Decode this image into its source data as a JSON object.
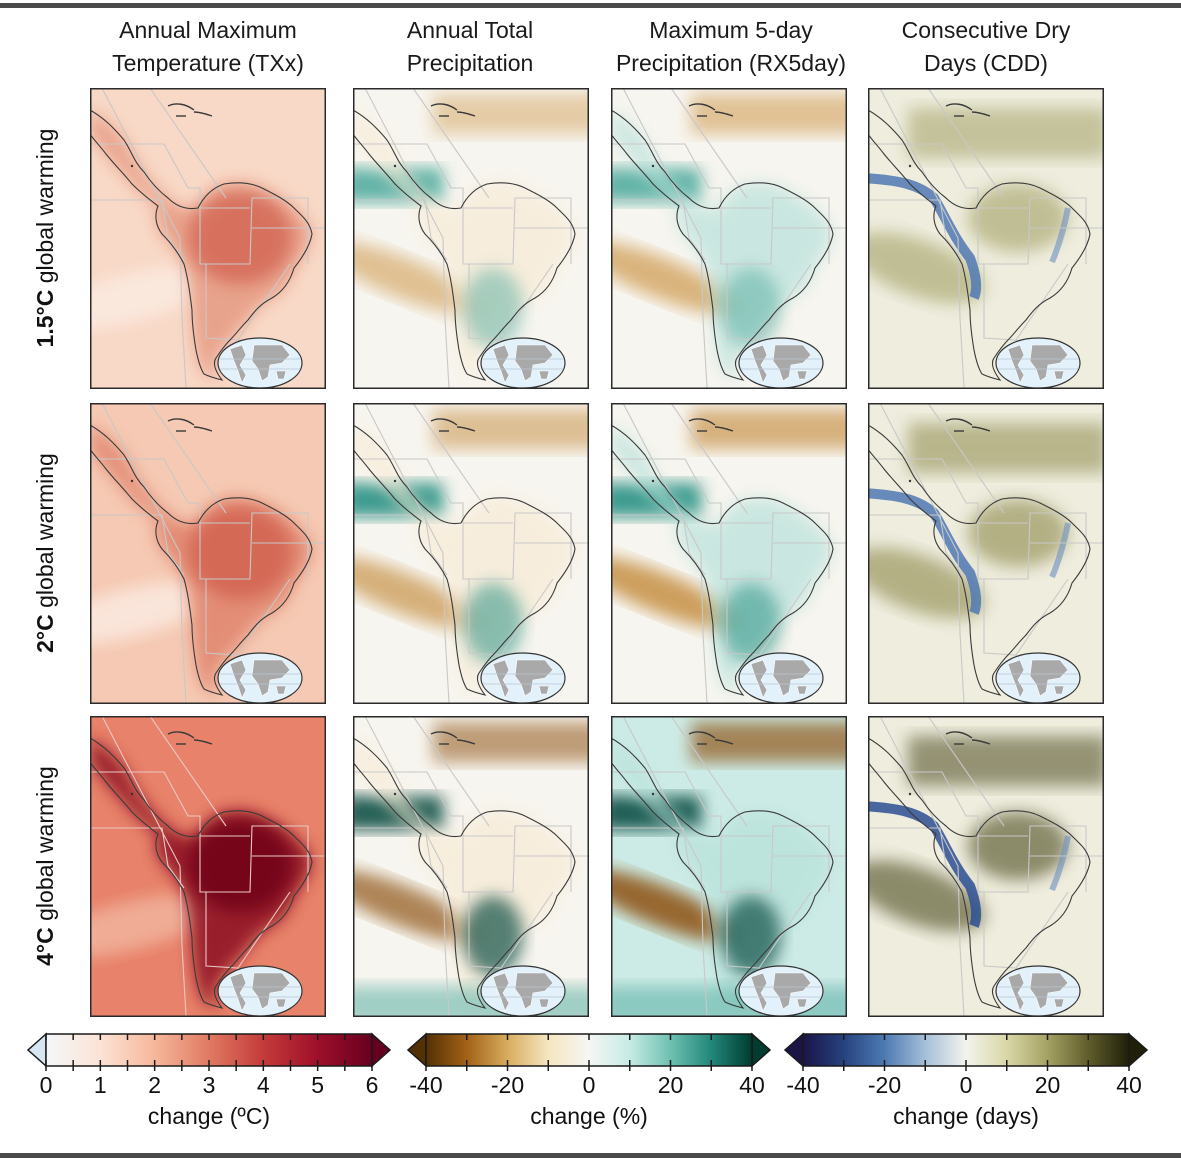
{
  "columns": [
    {
      "title_line1": "Annual Maximum",
      "title_line2": "Temperature (TXx)",
      "scale": "temp"
    },
    {
      "title_line1": "Annual Total",
      "title_line2": "Precipitation",
      "scale": "precip"
    },
    {
      "title_line1": "Maximum 5-day",
      "title_line2": "Precipitation (RX5day)",
      "scale": "precip"
    },
    {
      "title_line1": "Consecutive Dry",
      "title_line2": "Days (CDD)",
      "scale": "cdd"
    }
  ],
  "rows": [
    {
      "label_bold": "1.5°C",
      "label_rest": " global warming",
      "intensity": 0.35
    },
    {
      "label_bold": "2°C",
      "label_rest": " global warming",
      "intensity": 0.5
    },
    {
      "label_bold": "4°C",
      "label_rest": " global warming",
      "intensity": 1.0
    }
  ],
  "colorbars": [
    {
      "id": "temp",
      "title": "change (ºC)",
      "range": [
        0,
        6
      ],
      "ticks": [
        0,
        0.5,
        1,
        1.5,
        2,
        2.5,
        3,
        3.5,
        4,
        4.5,
        5,
        5.5,
        6
      ],
      "tick_labels": [
        "0",
        "1",
        "2",
        "3",
        "4",
        "5",
        "6"
      ],
      "labeled_values": [
        0,
        1,
        2,
        3,
        4,
        5,
        6
      ],
      "colors": [
        "#f4f7f9",
        "#fbe3d5",
        "#f6b79b",
        "#e07a62",
        "#c43b3a",
        "#9e0f2a",
        "#67001f"
      ],
      "under_color": "#d6e6f2",
      "over_color": "#67001f"
    },
    {
      "id": "precip",
      "title": "change (%)",
      "range": [
        -40,
        40
      ],
      "ticks": [
        -40,
        -30,
        -20,
        -10,
        0,
        10,
        20,
        30,
        40
      ],
      "tick_labels": [
        "-40",
        "-20",
        "0",
        "20",
        "40"
      ],
      "labeled_values": [
        -40,
        -20,
        0,
        20,
        40
      ],
      "colors": [
        "#543005",
        "#a26217",
        "#d8ac5e",
        "#f5e6c0",
        "#f6f6f4",
        "#c6ebe4",
        "#6fc0b1",
        "#21877a",
        "#003c30"
      ],
      "under_color": "#543005",
      "over_color": "#003c30"
    },
    {
      "id": "cdd",
      "title": "change (days)",
      "range": [
        -40,
        40
      ],
      "ticks": [
        -40,
        -30,
        -20,
        -10,
        0,
        10,
        20,
        30,
        40
      ],
      "tick_labels": [
        "-40",
        "-20",
        "0",
        "20",
        "40"
      ],
      "labeled_values": [
        -40,
        -20,
        0,
        20,
        40
      ],
      "colors": [
        "#1b1446",
        "#26427f",
        "#4d7ab2",
        "#a5bfd8",
        "#f3f3ee",
        "#d9d7a6",
        "#a5a264",
        "#605d2c",
        "#202009"
      ],
      "under_color": "#1b1446",
      "over_color": "#202009"
    }
  ],
  "chart_data": {
    "type": "heatmap",
    "title": "",
    "columns": [
      "Annual Maximum Temperature (TXx)",
      "Annual Total Precipitation",
      "Maximum 5-day Precipitation (RX5day)",
      "Consecutive Dry Days (CDD)"
    ],
    "rows": [
      "1.5°C global warming",
      "2°C global warming",
      "4°C global warming"
    ],
    "colorbars": [
      {
        "label": "change (ºC)",
        "range": [
          0,
          6
        ],
        "tick_labels": [
          "0",
          "1",
          "2",
          "3",
          "4",
          "5",
          "6"
        ],
        "extend": "both"
      },
      {
        "label": "change (%)",
        "range": [
          -40,
          40
        ],
        "tick_labels": [
          "-40",
          "-20",
          "0",
          "20",
          "40"
        ],
        "extend": "both"
      },
      {
        "label": "change (days)",
        "range": [
          -40,
          40
        ],
        "tick_labels": [
          "-40",
          "-20",
          "0",
          "20",
          "40"
        ],
        "extend": "both"
      }
    ],
    "region": "Central and South America",
    "grid": false
  }
}
